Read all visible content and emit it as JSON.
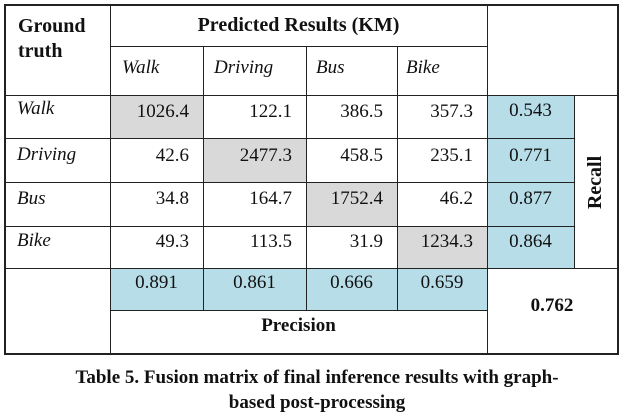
{
  "table": {
    "corner_label": "Ground\ntruth",
    "predicted_header": "Predicted Results (KM)",
    "column_labels": [
      "Walk",
      "Driving",
      "Bus",
      "Bike"
    ],
    "rows": [
      {
        "label": "Walk",
        "values": [
          "1026.4",
          "122.1",
          "386.5",
          "357.3"
        ],
        "recall": "0.543"
      },
      {
        "label": "Driving",
        "values": [
          "42.6",
          "2477.3",
          "458.5",
          "235.1"
        ],
        "recall": "0.771"
      },
      {
        "label": "Bus",
        "values": [
          "34.8",
          "164.7",
          "1752.4",
          "46.2"
        ],
        "recall": "0.877"
      },
      {
        "label": "Bike",
        "values": [
          "49.3",
          "113.5",
          "31.9",
          "1234.3"
        ],
        "recall": "0.864"
      }
    ],
    "precision_values": [
      "0.891",
      "0.861",
      "0.666",
      "0.659"
    ],
    "precision_label": "Precision",
    "recall_label": "Recall",
    "overall": "0.762",
    "colors": {
      "diagonal": "#d9d9d9",
      "metric": "#b7dde8",
      "border": "#222222"
    }
  },
  "caption": {
    "line1": "Table 5. Fusion matrix of final inference results with graph-",
    "line2": "based post-processing"
  }
}
